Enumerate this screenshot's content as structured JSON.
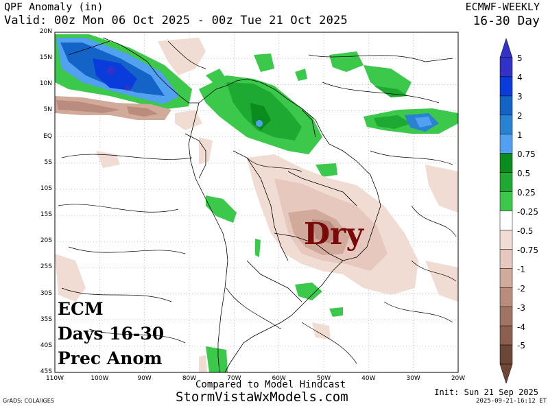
{
  "header": {
    "title": "QPF Anomaly (in)",
    "valid": "Valid: 00z Mon 06 Oct 2025 - 00z Tue 21 Oct 2025",
    "model": "ECMWF-WEEKLY",
    "period": "16-30 Day"
  },
  "map": {
    "lat_labels": [
      "20N",
      "15N",
      "10N",
      "5N",
      "EQ",
      "5S",
      "10S",
      "15S",
      "20S",
      "25S",
      "30S",
      "35S",
      "40S",
      "45S"
    ],
    "lon_labels": [
      "110W",
      "100W",
      "90W",
      "80W",
      "70W",
      "60W",
      "50W",
      "40W",
      "30W",
      "20W"
    ],
    "annotation": "Dry",
    "ecm_lines": [
      "ECM",
      "Days 16-30",
      "Prec Anom"
    ]
  },
  "colorbar": {
    "labels": [
      "5",
      "4",
      "3",
      "2",
      "1",
      "0.75",
      "0.5",
      "0.25",
      "-0.25",
      "-0.5",
      "-0.75",
      "-1",
      "-2",
      "-3",
      "-4",
      "-5"
    ],
    "colors": [
      "#3232c8",
      "#0a3cdc",
      "#1464c8",
      "#2a82d2",
      "#52a0f0",
      "#0a8c1e",
      "#1eaa32",
      "#3cc84b",
      "#ffffff",
      "#f0dcd2",
      "#e6c8be",
      "#d2aa9b",
      "#b98c7d",
      "#a07364",
      "#8c5f50",
      "#6e4637"
    ]
  },
  "footer": {
    "compared": "Compared to Model Hindcast",
    "site": "StormVistaWxModels.com",
    "grads": "GrADS: COLA/IGES",
    "init": "Init: Sun 21 Sep 2025",
    "stamp": "2025-09-21-16:12 ET"
  }
}
